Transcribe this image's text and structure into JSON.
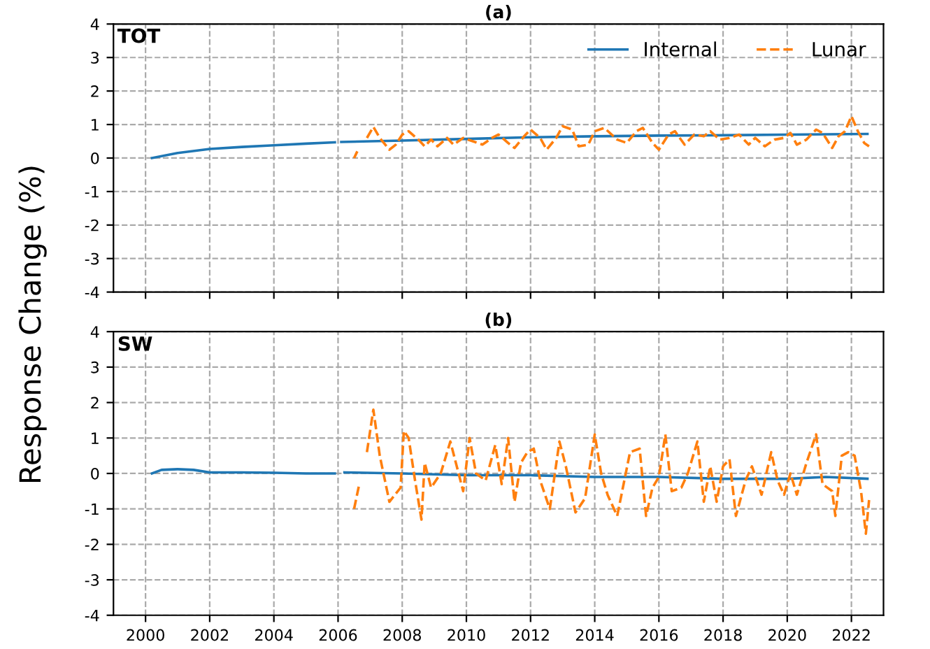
{
  "chart_data": [
    {
      "type": "line",
      "title": "(a)",
      "ylabel": "Response Change (%)",
      "annotations": [
        "TOT"
      ],
      "xlim": [
        1999,
        2023
      ],
      "xticks": [
        2000,
        2002,
        2004,
        2006,
        2008,
        2010,
        2012,
        2014,
        2016,
        2018,
        2020,
        2022
      ],
      "ylim": [
        -4,
        4
      ],
      "yticks": [
        -4,
        -3,
        -2,
        -1,
        0,
        1,
        2,
        3,
        4
      ],
      "grid": true,
      "legend": "top right",
      "tick_labels": "y",
      "series": [
        {
          "name": "Internal",
          "color": "#1f77b4",
          "line_style": "solid",
          "x": [
            2000.2,
            2001,
            2002,
            2003,
            2004,
            2005,
            2005.9,
            2006.0,
            2006.1,
            2008,
            2010,
            2012,
            2014,
            2016,
            2018,
            2020,
            2022.5
          ],
          "values": [
            0,
            0.15,
            0.27,
            0.33,
            0.38,
            0.43,
            0.47,
            null,
            0.48,
            0.52,
            0.57,
            0.62,
            0.65,
            0.67,
            0.68,
            0.7,
            0.72
          ]
        },
        {
          "name": "Lunar",
          "color": "#ff7f0e",
          "line_style": "dashed",
          "x": [
            2006.5,
            2006.6,
            2006.75,
            2006.9,
            2007.1,
            2007.3,
            2007.6,
            2007.8,
            2008.0,
            2008.2,
            2008.5,
            2008.7,
            2008.9,
            2009.1,
            2009.4,
            2009.6,
            2009.9,
            2010.2,
            2010.5,
            2010.8,
            2011.0,
            2011.3,
            2011.5,
            2011.8,
            2012.0,
            2012.3,
            2012.5,
            2012.8,
            2013.0,
            2013.3,
            2013.5,
            2013.8,
            2014.0,
            2014.3,
            2014.7,
            2015.0,
            2015.3,
            2015.5,
            2015.8,
            2016.0,
            2016.3,
            2016.5,
            2016.8,
            2017.1,
            2017.4,
            2017.6,
            2017.9,
            2018.2,
            2018.5,
            2018.8,
            2019.0,
            2019.3,
            2019.6,
            2019.9,
            2020.1,
            2020.3,
            2020.6,
            2020.9,
            2021.1,
            2021.4,
            2021.6,
            2021.8,
            2022.0,
            2022.2,
            2022.4,
            2022.55
          ],
          "values": [
            0.0,
            0.2,
            null,
            0.6,
            0.93,
            0.6,
            0.25,
            0.4,
            0.7,
            0.8,
            0.55,
            0.35,
            0.55,
            0.35,
            0.6,
            0.4,
            0.6,
            0.5,
            0.4,
            0.6,
            0.7,
            0.45,
            0.3,
            0.65,
            0.85,
            0.6,
            0.25,
            0.6,
            0.95,
            0.85,
            0.35,
            0.4,
            0.8,
            0.9,
            0.55,
            0.45,
            0.8,
            0.9,
            0.45,
            0.25,
            0.7,
            0.8,
            0.4,
            0.7,
            0.65,
            0.8,
            0.55,
            0.6,
            0.7,
            0.4,
            0.6,
            0.35,
            0.55,
            0.6,
            0.75,
            0.4,
            0.55,
            0.85,
            0.75,
            0.3,
            0.65,
            0.8,
            1.25,
            0.8,
            0.45,
            0.35
          ]
        }
      ]
    },
    {
      "type": "line",
      "title": "(b)",
      "annotations": [
        "SW"
      ],
      "xlim": [
        1999,
        2023
      ],
      "xticks": [
        2000,
        2002,
        2004,
        2006,
        2008,
        2010,
        2012,
        2014,
        2016,
        2018,
        2020,
        2022
      ],
      "ylim": [
        -4,
        4
      ],
      "yticks": [
        -4,
        -3,
        -2,
        -1,
        0,
        1,
        2,
        3,
        4
      ],
      "grid": true,
      "series": [
        {
          "color": "#1f77b4",
          "line_style": "solid",
          "x": [
            2000.2,
            2000.5,
            2001,
            2001.5,
            2002,
            2003,
            2004,
            2005,
            2005.9,
            2006.0,
            2006.2,
            2008,
            2010,
            2012,
            2014,
            2016,
            2018,
            2020,
            2021.2,
            2022.5
          ],
          "values": [
            0,
            0.1,
            0.12,
            0.1,
            0.03,
            0.03,
            0.02,
            0.0,
            0.0,
            null,
            0.03,
            0.0,
            -0.05,
            -0.05,
            -0.1,
            -0.1,
            -0.15,
            -0.15,
            -0.1,
            -0.15
          ]
        },
        {
          "color": "#ff7f0e",
          "line_style": "dashed",
          "x": [
            2006.5,
            2006.65,
            2006.75,
            2006.9,
            2007.1,
            2007.3,
            2007.6,
            2007.95,
            2008.05,
            2008.2,
            2008.4,
            2008.6,
            2008.7,
            2008.9,
            2009.2,
            2009.5,
            2009.7,
            2009.9,
            2010.1,
            2010.3,
            2010.6,
            2010.9,
            2011.1,
            2011.3,
            2011.5,
            2011.7,
            2011.9,
            2012.1,
            2012.3,
            2012.6,
            2012.9,
            2013.1,
            2013.4,
            2013.7,
            2014.0,
            2014.2,
            2014.4,
            2014.7,
            2014.9,
            2015.1,
            2015.4,
            2015.6,
            2015.8,
            2016.0,
            2016.2,
            2016.4,
            2016.7,
            2016.9,
            2017.2,
            2017.4,
            2017.6,
            2017.8,
            2018.0,
            2018.2,
            2018.4,
            2018.7,
            2018.9,
            2019.2,
            2019.5,
            2019.7,
            2019.9,
            2020.1,
            2020.3,
            2020.6,
            2020.9,
            2021.1,
            2021.4,
            2021.5,
            2021.7,
            2021.9,
            2022.1,
            2022.3,
            2022.45,
            2022.55
          ],
          "values": [
            -1.0,
            -0.35,
            null,
            0.6,
            1.8,
            0.5,
            -0.8,
            -0.4,
            1.2,
            1.0,
            -0.2,
            -1.3,
            0.3,
            -0.4,
            0.0,
            0.9,
            0.2,
            -0.5,
            1.0,
            0.0,
            -0.2,
            0.8,
            -0.3,
            1.0,
            -0.8,
            0.3,
            0.6,
            0.7,
            -0.2,
            -1.0,
            0.9,
            0.2,
            -1.1,
            -0.7,
            1.1,
            0.0,
            -0.6,
            -1.2,
            -0.3,
            0.6,
            0.7,
            -1.2,
            -0.4,
            -0.1,
            1.1,
            -0.5,
            -0.4,
            0.0,
            0.9,
            -0.8,
            0.2,
            -0.8,
            0.2,
            0.4,
            -1.2,
            -0.2,
            0.2,
            -0.6,
            0.6,
            -0.2,
            -0.6,
            0.0,
            -0.6,
            0.3,
            1.1,
            -0.3,
            -0.5,
            -1.2,
            0.5,
            0.6,
            0.5,
            -0.5,
            -1.7,
            -0.75
          ]
        }
      ]
    }
  ]
}
